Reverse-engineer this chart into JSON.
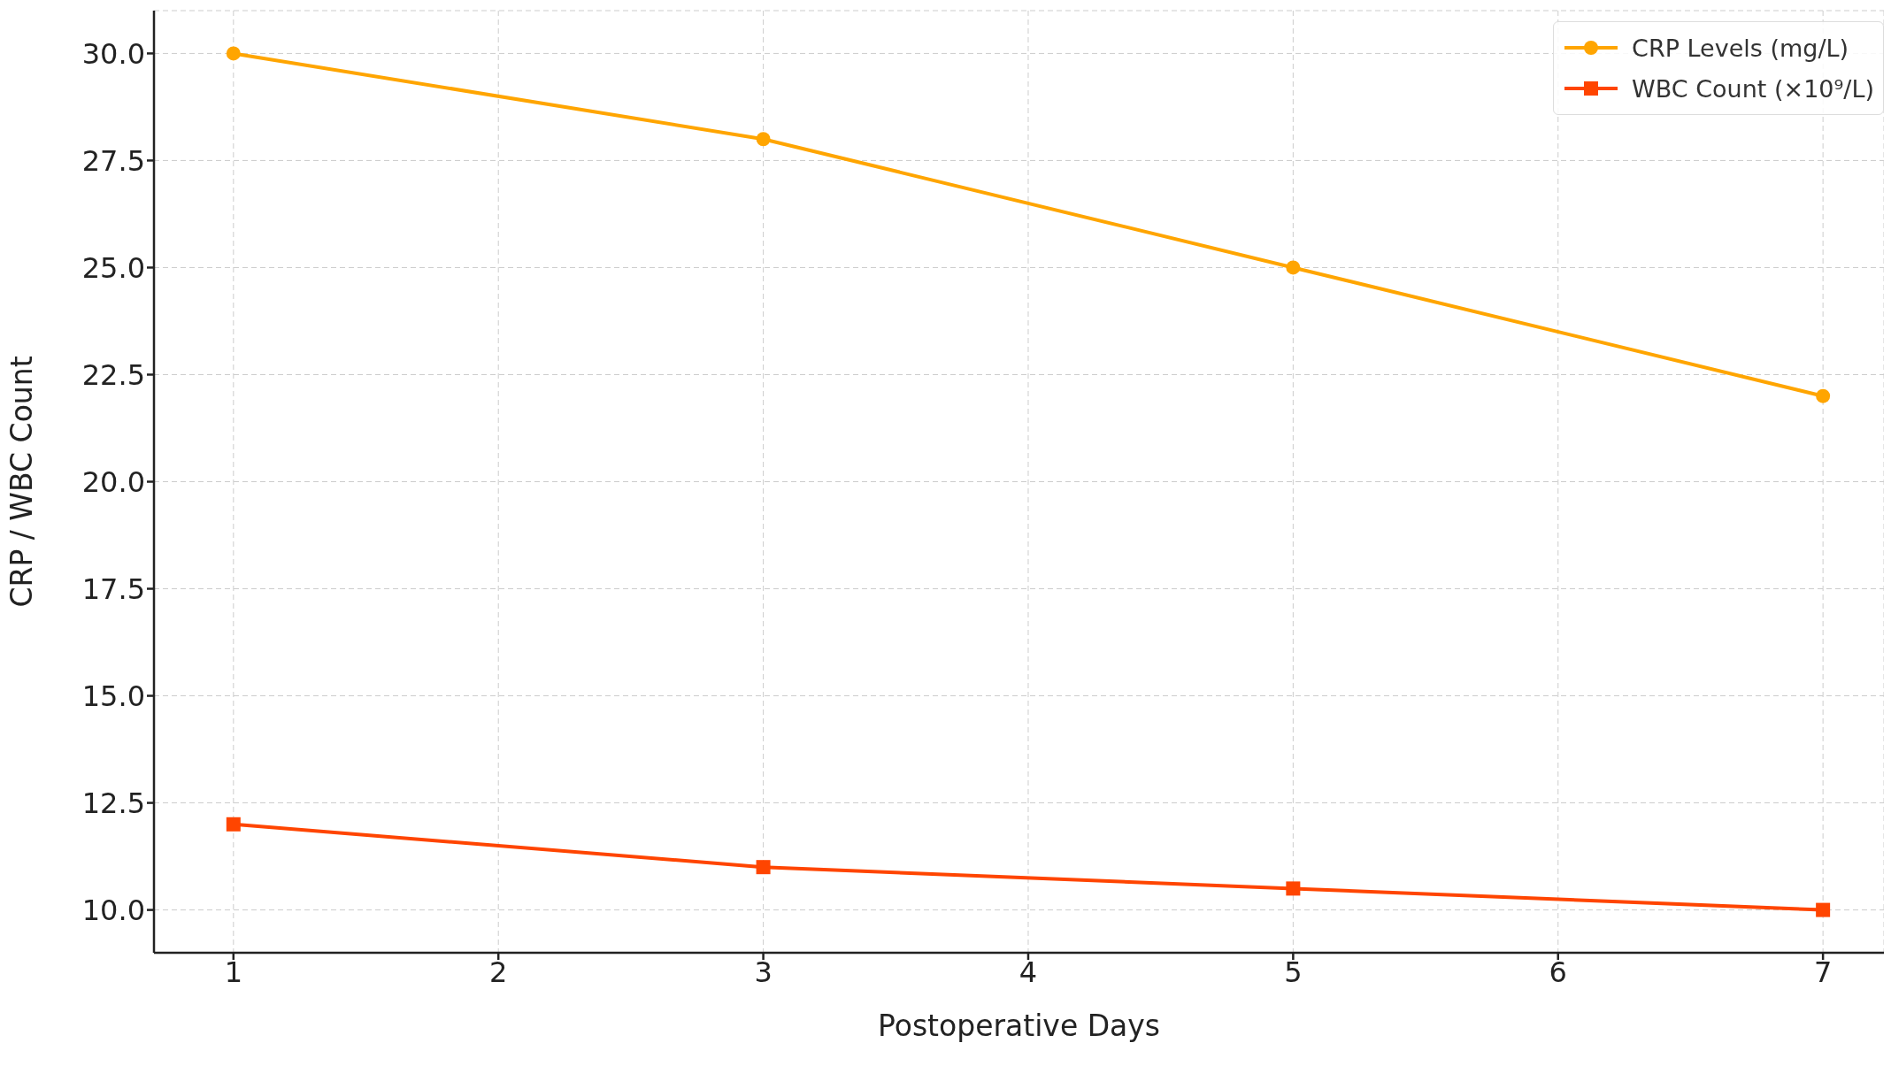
{
  "chart_data": {
    "type": "line",
    "xlabel": "Postoperative Days",
    "ylabel": "CRP / WBC Count",
    "x": [
      1,
      3,
      5,
      7
    ],
    "series": [
      {
        "name": "CRP Levels (mg/L)",
        "color": "#ffa500",
        "values": [
          30,
          28,
          25,
          22
        ],
        "marker": "circle"
      },
      {
        "name": "WBC Count (×10⁹/L)",
        "color": "#ff4500",
        "values": [
          12,
          11,
          10.5,
          10
        ],
        "marker": "square"
      }
    ],
    "xlim": [
      0.7,
      7.23
    ],
    "xticks": [
      1,
      2,
      3,
      4,
      5,
      6,
      7
    ],
    "ylim": [
      9,
      31
    ],
    "yticks": [
      {
        "value": 10,
        "label": "10.0"
      },
      12.5,
      {
        "value": 15,
        "label": "15.0"
      },
      17.5,
      {
        "value": 20,
        "label": "20.0"
      },
      22.5,
      {
        "value": 25,
        "label": "25.0"
      },
      27.5,
      {
        "value": 30,
        "label": "30.0"
      }
    ],
    "grid": true,
    "legend": "top right",
    "line_style": "solid"
  }
}
